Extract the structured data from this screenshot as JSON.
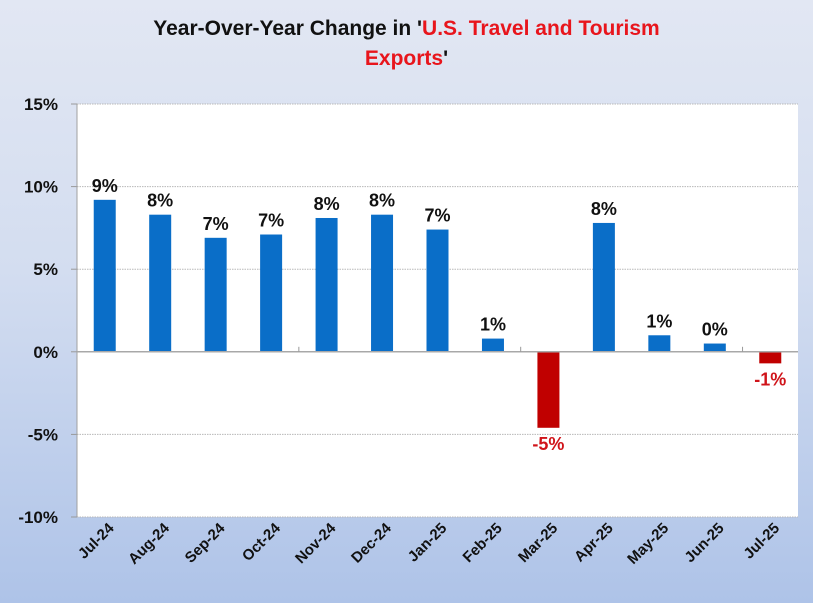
{
  "title": {
    "prefix": "Year-Over-Year Change in '",
    "highlight_line1": "U.S. Travel and Tourism",
    "highlight_line2": "Exports",
    "suffix": "'"
  },
  "colors": {
    "positive": "#0a6ec8",
    "negative": "#c00000",
    "negative_label": "#d0141a",
    "highlight_title": "#e8151c"
  },
  "chart_data": {
    "type": "bar",
    "title": "Year-Over-Year Change in 'U.S. Travel and Tourism Exports'",
    "xlabel": "",
    "ylabel": "",
    "ylim": [
      -10,
      15
    ],
    "yticks": [
      15,
      10,
      5,
      0,
      -5,
      -10
    ],
    "ytick_labels": [
      "15%",
      "10%",
      "5%",
      "0%",
      "-5%",
      "-10%"
    ],
    "grid": true,
    "categories": [
      "Jul-24",
      "Aug-24",
      "Sep-24",
      "Oct-24",
      "Nov-24",
      "Dec-24",
      "Jan-25",
      "Feb-25",
      "Mar-25",
      "Apr-25",
      "May-25",
      "Jun-25",
      "Jul-25"
    ],
    "values": [
      9.2,
      8.3,
      6.9,
      7.1,
      8.1,
      8.3,
      7.4,
      0.8,
      -4.6,
      7.8,
      1.0,
      0.5,
      -0.7
    ],
    "data_labels": [
      "9%",
      "8%",
      "7%",
      "7%",
      "8%",
      "8%",
      "7%",
      "1%",
      "-5%",
      "8%",
      "1%",
      "0%",
      "-1%"
    ]
  }
}
